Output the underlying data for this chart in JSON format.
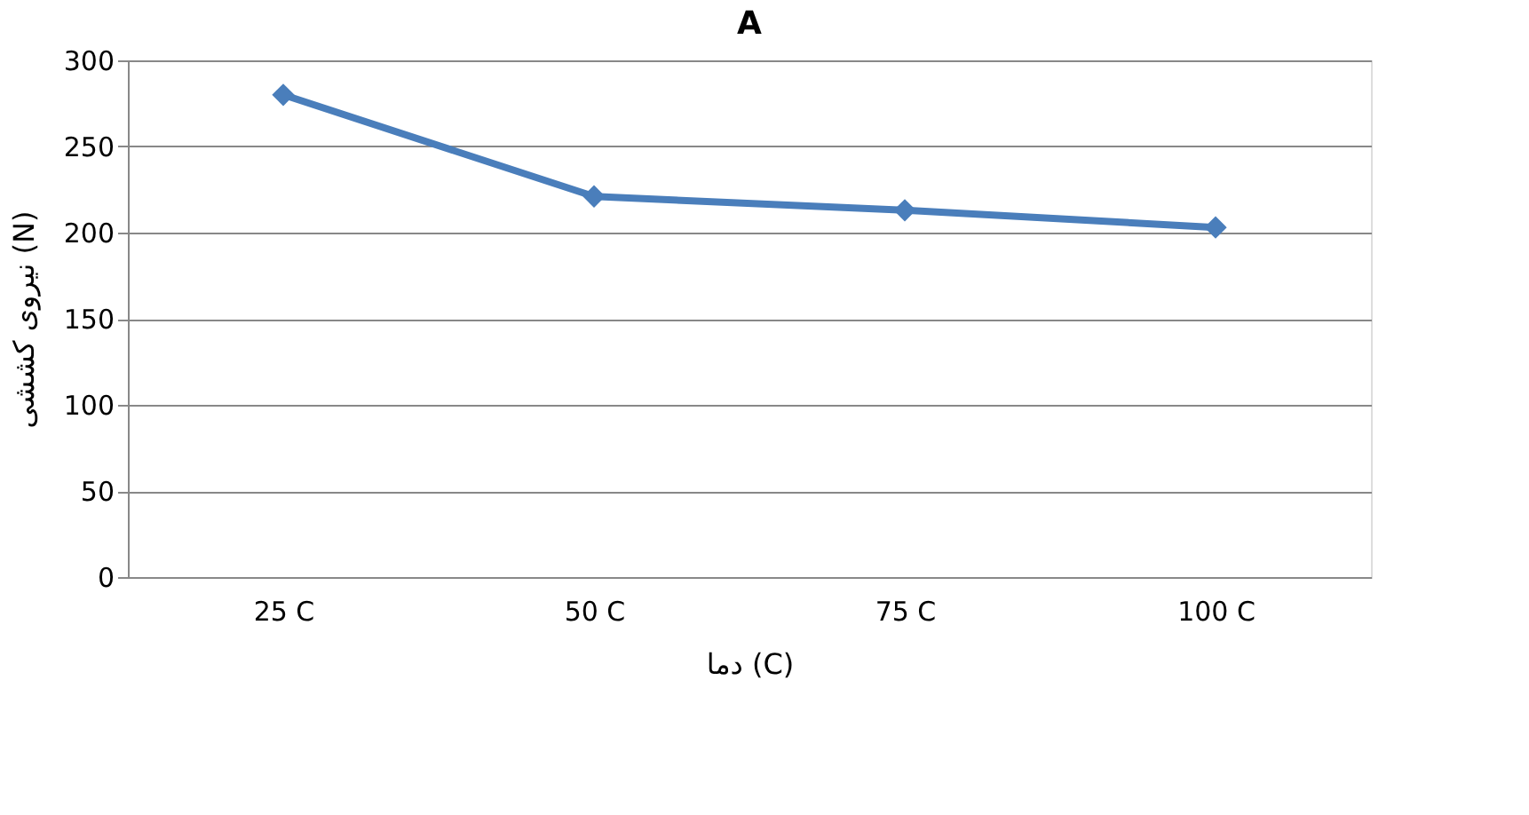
{
  "chart_data": {
    "type": "line",
    "title": "A",
    "xlabel": "دما (C)",
    "ylabel": "نیروی کششی (N)",
    "categories": [
      "25 C",
      "50 C",
      "75 C",
      "100 C"
    ],
    "series": [
      {
        "color": "#4a7ebb",
        "values": [
          280,
          221,
          213,
          203
        ]
      }
    ],
    "ylim": [
      0,
      300
    ],
    "yticks": [
      0,
      50,
      100,
      150,
      200,
      250,
      300
    ],
    "grid": "y",
    "marker": "diamond",
    "line_style": "solid",
    "legend": false
  }
}
